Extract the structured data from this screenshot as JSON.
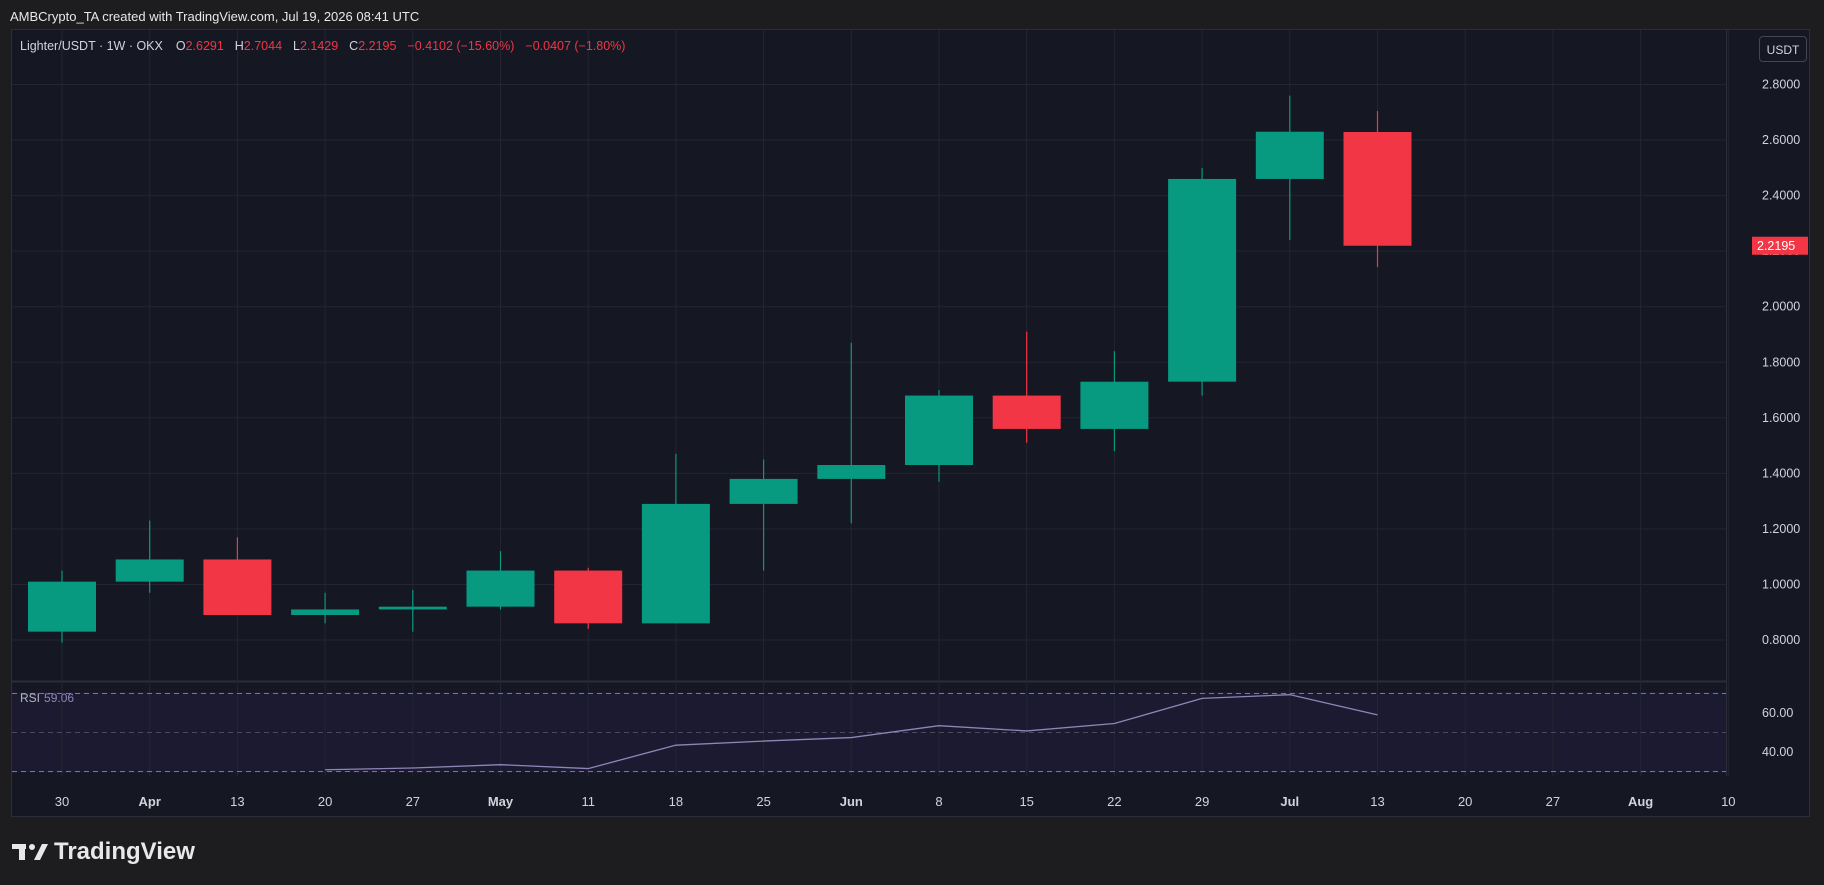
{
  "header": {
    "attribution": "AMBCrypto_TA created with TradingView.com, Jul 19, 2026 08:41 UTC"
  },
  "legend": {
    "symbol": "Lighter/USDT · 1W · OKX",
    "open_label": "O",
    "open": "2.6291",
    "high_label": "H",
    "high": "2.7044",
    "low_label": "L",
    "low": "2.1429",
    "close_label": "C",
    "close": "2.2195",
    "change": "−0.4102 (−15.60%)",
    "change2": "−0.0407 (−1.80%)"
  },
  "currency_button": "USDT",
  "rsi": {
    "label": "RSI",
    "value": "59.06"
  },
  "brand": {
    "name": "TradingView"
  },
  "colors": {
    "up": "#089981",
    "down": "#f23645",
    "rsi_line": "#8e86b8",
    "bg": "#151722",
    "grid": "#232632"
  },
  "chart_data": {
    "type": "candlestick",
    "price_axis": {
      "ticks": [
        "2.8000",
        "2.6000",
        "2.4000",
        "2.2000",
        "2.0000",
        "1.8000",
        "1.6000",
        "1.4000",
        "1.2000",
        "1.0000",
        "0.8000"
      ],
      "last_price_label": "2.2195"
    },
    "x_axis_ticks": [
      "30",
      "Apr",
      "13",
      "20",
      "27",
      "May",
      "11",
      "18",
      "25",
      "Jun",
      "8",
      "15",
      "22",
      "29",
      "Jul",
      "13",
      "20",
      "27",
      "Aug",
      "10"
    ],
    "x_axis_bold": [
      "Apr",
      "May",
      "Jun",
      "Jul",
      "Aug"
    ],
    "candles": [
      {
        "x": "30",
        "open": 0.83,
        "high": 1.05,
        "low": 0.79,
        "close": 1.01
      },
      {
        "x": "Apr",
        "open": 1.01,
        "high": 1.23,
        "low": 0.97,
        "close": 1.09
      },
      {
        "x": "13",
        "open": 1.09,
        "high": 1.17,
        "low": 0.89,
        "close": 0.89
      },
      {
        "x": "20",
        "open": 0.89,
        "high": 0.97,
        "low": 0.86,
        "close": 0.91
      },
      {
        "x": "27",
        "open": 0.91,
        "high": 0.98,
        "low": 0.83,
        "close": 0.92
      },
      {
        "x": "May",
        "open": 0.92,
        "high": 1.12,
        "low": 0.91,
        "close": 1.05
      },
      {
        "x": "11",
        "open": 1.05,
        "high": 1.06,
        "low": 0.84,
        "close": 0.86
      },
      {
        "x": "18",
        "open": 0.86,
        "high": 1.47,
        "low": 0.86,
        "close": 1.29
      },
      {
        "x": "25",
        "open": 1.29,
        "high": 1.45,
        "low": 1.05,
        "close": 1.38
      },
      {
        "x": "Jun",
        "open": 1.38,
        "high": 1.87,
        "low": 1.22,
        "close": 1.43
      },
      {
        "x": "8",
        "open": 1.43,
        "high": 1.7,
        "low": 1.37,
        "close": 1.68
      },
      {
        "x": "15",
        "open": 1.68,
        "high": 1.91,
        "low": 1.51,
        "close": 1.56
      },
      {
        "x": "22",
        "open": 1.56,
        "high": 1.84,
        "low": 1.48,
        "close": 1.73
      },
      {
        "x": "29",
        "open": 1.73,
        "high": 2.5,
        "low": 1.68,
        "close": 2.46
      },
      {
        "x": "Jul",
        "open": 2.46,
        "high": 2.76,
        "low": 2.24,
        "close": 2.63
      },
      {
        "x": "13",
        "open": 2.6291,
        "high": 2.7044,
        "low": 2.1429,
        "close": 2.2195
      }
    ],
    "rsi_series": [
      null,
      null,
      null,
      30.9,
      31.8,
      33.5,
      31.5,
      43.5,
      45.6,
      47.4,
      53.5,
      50.8,
      54.6,
      67.5,
      69.4,
      59.06
    ],
    "rsi_axis": {
      "ticks": [
        "60.00",
        "40.00"
      ],
      "levels": [
        70,
        30
      ]
    }
  }
}
